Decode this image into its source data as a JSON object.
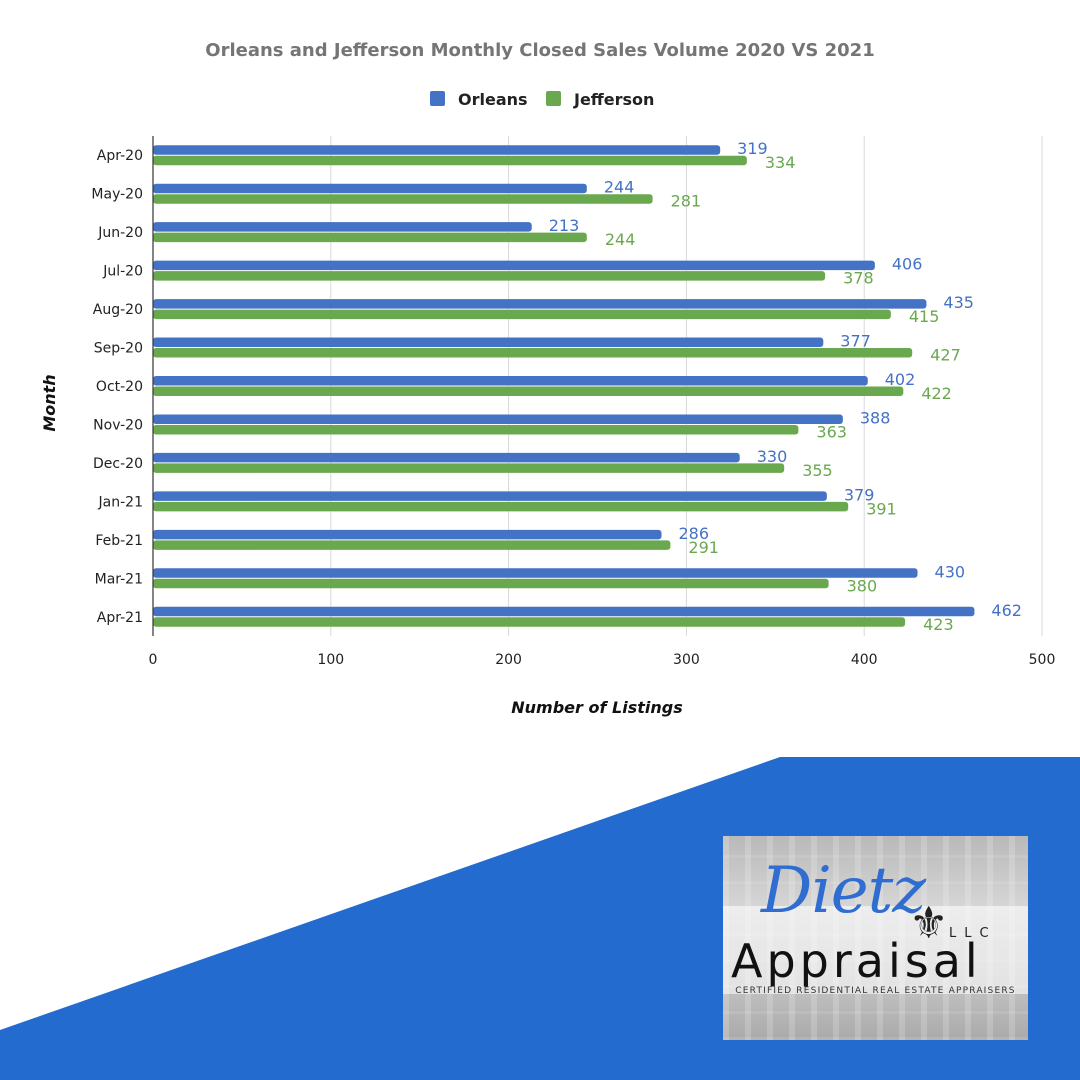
{
  "colors": {
    "orleans": "#4472c4",
    "jefferson": "#6aa84f",
    "background_wedge": "#236bce",
    "gridline": "#d9d9d9",
    "axis": "#333333"
  },
  "chart_data": {
    "type": "bar",
    "orientation": "horizontal",
    "title": "Orleans and Jefferson Monthly Closed Sales Volume 2020 VS 2021",
    "xlabel": "Number of Listings",
    "ylabel": "Month",
    "xlim": [
      0,
      500
    ],
    "xticks": [
      0,
      100,
      200,
      300,
      400,
      500
    ],
    "grid": "vertical",
    "legend_position": "top",
    "categories": [
      "Apr-20",
      "May-20",
      "Jun-20",
      "Jul-20",
      "Aug-20",
      "Sep-20",
      "Oct-20",
      "Nov-20",
      "Dec-20",
      "Jan-21",
      "Feb-21",
      "Mar-21",
      "Apr-21"
    ],
    "series": [
      {
        "name": "Orleans",
        "color": "#4472c4",
        "values": [
          319,
          244,
          213,
          406,
          435,
          377,
          402,
          388,
          330,
          379,
          286,
          430,
          462
        ]
      },
      {
        "name": "Jefferson",
        "color": "#6aa84f",
        "values": [
          334,
          281,
          244,
          378,
          415,
          427,
          422,
          363,
          355,
          391,
          291,
          380,
          423
        ]
      }
    ],
    "data_labels": true
  },
  "logo": {
    "script_text": "Dietz",
    "fleur_glyph": "⚜",
    "llc_text": "LLC",
    "wordmark": "Appraisal",
    "tagline": "CERTIFIED RESIDENTIAL REAL ESTATE APPRAISERS"
  }
}
